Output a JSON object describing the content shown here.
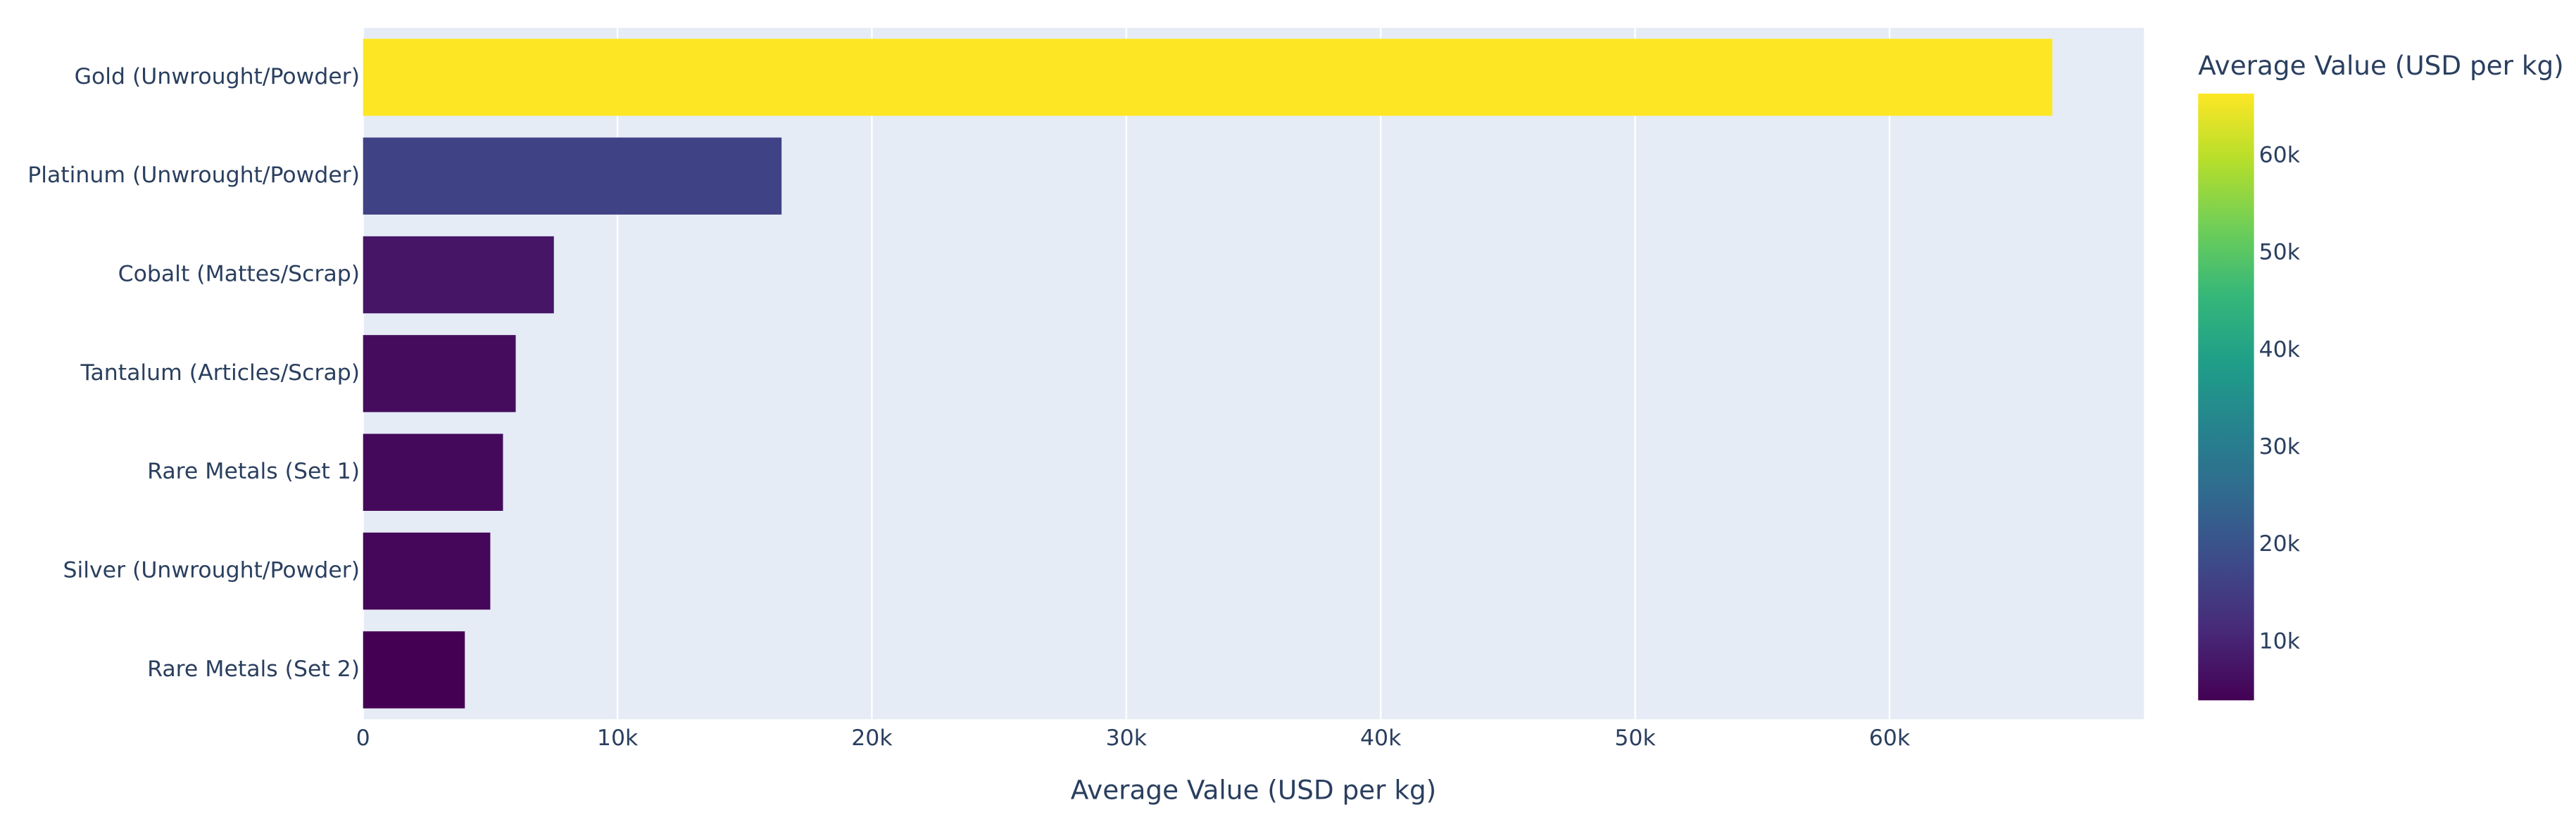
{
  "chart_data": {
    "type": "bar",
    "orientation": "horizontal",
    "x_label": "Average Value (USD per kg)",
    "categories": [
      "Gold (Unwrought/Powder)",
      "Platinum (Unwrought/Powder)",
      "Cobalt (Mattes/Scrap)",
      "Tantalum (Articles/Scrap)",
      "Rare Metals (Set 1)",
      "Silver (Unwrought/Powder)",
      "Rare Metals (Set 2)"
    ],
    "values": [
      66400,
      16450,
      7500,
      6000,
      5500,
      5000,
      4000
    ],
    "xlim": [
      0,
      70000
    ],
    "xticks": [
      0,
      {
        "value": 10000,
        "label": "10k"
      },
      {
        "value": 20000,
        "label": "20k"
      },
      {
        "value": 30000,
        "label": "30k"
      },
      {
        "value": 40000,
        "label": "40k"
      },
      {
        "value": 50000,
        "label": "50k"
      },
      {
        "value": 60000,
        "label": "60k"
      }
    ],
    "grid": true,
    "colorscale": [
      "#440154",
      "#482878",
      "#3e4989",
      "#31688e",
      "#26828e",
      "#1f9e89",
      "#35b779",
      "#6ece58",
      "#b5de2b",
      "#fde725"
    ],
    "colorbar_title": "Average Value (USD per kg)",
    "clim": [
      4000,
      66400
    ],
    "colorbar_ticks": [
      {
        "value": 10000,
        "label": "10k"
      },
      {
        "value": 20000,
        "label": "20k"
      },
      {
        "value": 30000,
        "label": "30k"
      },
      {
        "value": 40000,
        "label": "40k"
      },
      {
        "value": 50000,
        "label": "50k"
      },
      {
        "value": 60000,
        "label": "60k"
      }
    ]
  }
}
